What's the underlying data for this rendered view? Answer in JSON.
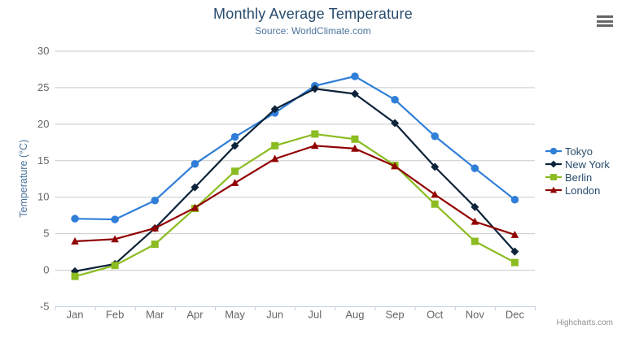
{
  "header": {
    "title": "Monthly Average Temperature",
    "subtitle": "Source: WorldClimate.com"
  },
  "export_menu": {
    "icon": "hamburger-icon"
  },
  "chart_data": {
    "type": "line",
    "title": "Monthly Average Temperature",
    "subtitle": "Source: WorldClimate.com",
    "categories": [
      "Jan",
      "Feb",
      "Mar",
      "Apr",
      "May",
      "Jun",
      "Jul",
      "Aug",
      "Sep",
      "Oct",
      "Nov",
      "Dec"
    ],
    "series": [
      {
        "name": "Tokyo",
        "color": "#2f7ed8",
        "marker": "circle",
        "values": [
          7.0,
          6.9,
          9.5,
          14.5,
          18.2,
          21.5,
          25.2,
          26.5,
          23.3,
          18.3,
          13.9,
          9.6
        ]
      },
      {
        "name": "New York",
        "color": "#0d233a",
        "marker": "diamond",
        "values": [
          -0.2,
          0.8,
          5.7,
          11.3,
          17.0,
          22.0,
          24.8,
          24.1,
          20.1,
          14.1,
          8.6,
          2.5
        ]
      },
      {
        "name": "Berlin",
        "color": "#8bbc21",
        "marker": "square",
        "values": [
          -0.9,
          0.6,
          3.5,
          8.4,
          13.5,
          17.0,
          18.6,
          17.9,
          14.3,
          9.0,
          3.9,
          1.0
        ]
      },
      {
        "name": "London",
        "color": "#910000",
        "marker": "triangle",
        "values": [
          3.9,
          4.2,
          5.7,
          8.5,
          11.9,
          15.2,
          17.0,
          16.6,
          14.2,
          10.3,
          6.6,
          4.8
        ]
      }
    ],
    "xlabel": "",
    "ylabel": "Temperature (°C)",
    "ylim": [
      -5,
      30
    ],
    "yticks": [
      -5,
      0,
      5,
      10,
      15,
      20,
      25,
      30
    ],
    "grid": true,
    "legend_position": "right"
  },
  "credits": {
    "label": "Highcharts.com"
  },
  "colors": {
    "title": "#274b6d",
    "subtitle": "#4d759e",
    "axis_labels": "#666666",
    "axis_title": "#4d759e",
    "grid_line": "#c9c9c9",
    "axis_line": "#c0d0e0",
    "legend_text": "#274b6d",
    "credits": "#909090",
    "background": "#ffffff",
    "menu_icon": "#666666"
  }
}
